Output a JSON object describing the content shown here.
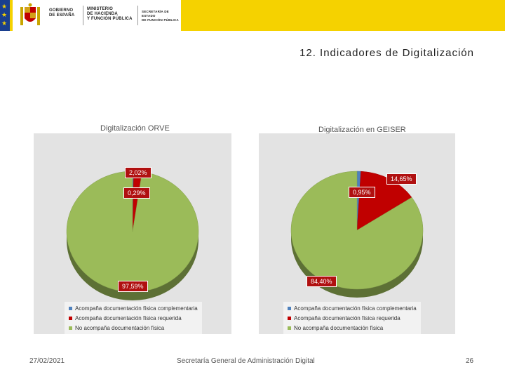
{
  "header": {
    "logo_lines_1": [
      "GOBIERNO",
      "DE ESPAÑA"
    ],
    "logo_lines_2": [
      "MINISTERIO",
      "DE HACIENDA",
      "Y FUNCIÓN PÚBLICA"
    ],
    "logo_lines_3": [
      "SECRETARÍA DE ESTADO",
      "DE FUNCIÓN PÚBLICA"
    ]
  },
  "page_title": "12. Indicadores de Digitalización",
  "footer": {
    "date": "27/02/2021",
    "center": "Secretaría General de Administración Digital",
    "page_number": "26"
  },
  "colors": {
    "header_yellow": "#f5d200",
    "eu_blue": "#1a3f8f",
    "slice_blue": "#4f81bd",
    "slice_red": "#c00000",
    "slice_green": "#9bbb59"
  },
  "chart_data": [
    {
      "type": "pie",
      "title": "Digitalización ORVE",
      "slices": [
        {
          "label": "Acompaña documentación física complementaria",
          "value": 0.29,
          "display": "0,29%",
          "color": "#4f81bd"
        },
        {
          "label": "Acompaña documentación física requerida",
          "value": 2.02,
          "display": "2,02%",
          "color": "#c00000"
        },
        {
          "label": "No acompaña documentación física",
          "value": 97.59,
          "display": "97,59%",
          "color": "#9bbb59"
        }
      ],
      "legend": [
        "Acompaña documentación física complementaria",
        "Acompaña documentación física requerida",
        "No acompaña documentación física"
      ],
      "legend_position": "bottom"
    },
    {
      "type": "pie",
      "title": "Digitalización en GEISER",
      "slices": [
        {
          "label": "Acompaña documentación física complementaria",
          "value": 0.95,
          "display": "0,95%",
          "color": "#4f81bd"
        },
        {
          "label": "Acompaña documentación física requerida",
          "value": 14.65,
          "display": "14,65%",
          "color": "#c00000"
        },
        {
          "label": "No acompaña documentación física",
          "value": 84.4,
          "display": "84,40%",
          "color": "#9bbb59"
        }
      ],
      "legend": [
        "Acompaña documentación física complementaria",
        "Acompaña documentación física requerida",
        "No acompaña documentación física"
      ],
      "legend_position": "bottom"
    }
  ]
}
